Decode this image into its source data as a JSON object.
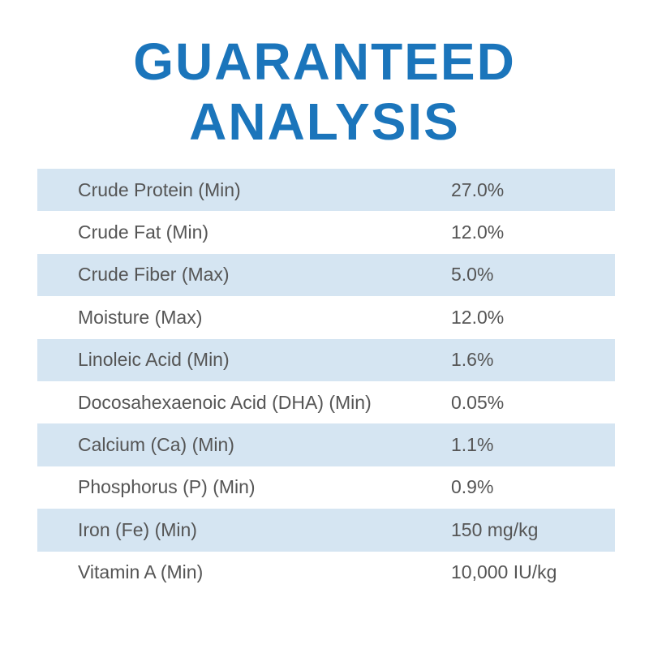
{
  "header": {
    "title_line1": "GUARANTEED",
    "title_line2": "ANALYSIS"
  },
  "table": {
    "rows": [
      [
        "Crude Protein (Min)",
        "27.0%"
      ],
      [
        "Crude Fat (Min)",
        "12.0%"
      ],
      [
        "Crude Fiber (Max)",
        "5.0%"
      ],
      [
        "Moisture (Max)",
        "12.0%"
      ],
      [
        "Linoleic Acid (Min)",
        "1.6%"
      ],
      [
        "Docosahexaenoic Acid (DHA) (Min)",
        "0.05%"
      ],
      [
        "Calcium (Ca) (Min)",
        "1.1%"
      ],
      [
        "Phosphorus (P) (Min)",
        "0.9%"
      ],
      [
        "Iron (Fe) (Min)",
        "150 mg/kg"
      ],
      [
        "Vitamin A (Min)",
        "10,000 IU/kg"
      ]
    ]
  }
}
